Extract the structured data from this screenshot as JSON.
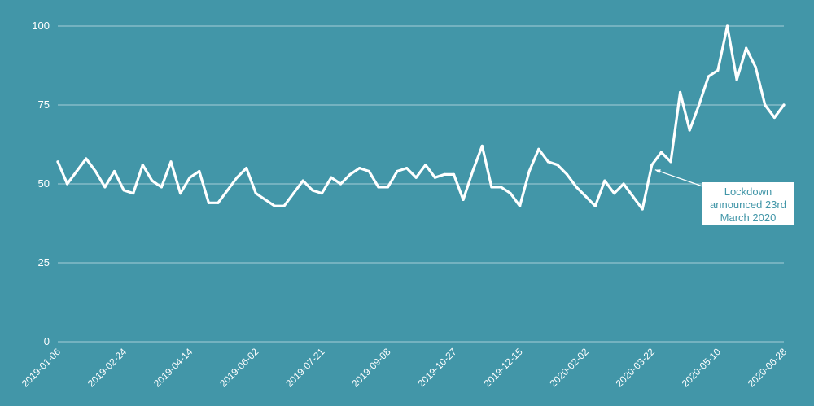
{
  "colors": {
    "background": "#4296a8",
    "line": "#ffffff",
    "grid": "#c6e1e7",
    "annotation_text": "#4296a8"
  },
  "chart_data": {
    "type": "line",
    "title": "",
    "xlabel": "",
    "ylabel": "",
    "ylim": [
      0,
      100
    ],
    "yticks": [
      "0",
      "25",
      "50",
      "75",
      "100"
    ],
    "grid": true,
    "x_tick_labels": [
      "2019-01-06",
      "2019-02-24",
      "2019-04-14",
      "2019-06-02",
      "2019-07-21",
      "2019-09-08",
      "2019-10-27",
      "2019-12-15",
      "2020-02-02",
      "2020-03-22",
      "2020-05-10",
      "2020-06-28"
    ],
    "x_start": "2019-01-06",
    "x_end": "2020-06-28",
    "series": [
      {
        "values": [
          57,
          50,
          54,
          58,
          54,
          49,
          54,
          48,
          47,
          56,
          51,
          49,
          57,
          47,
          52,
          54,
          44,
          44,
          48,
          52,
          55,
          47,
          45,
          43,
          43,
          47,
          51,
          48,
          47,
          52,
          50,
          53,
          55,
          54,
          49,
          49,
          54,
          55,
          52,
          56,
          52,
          53,
          53,
          45,
          54,
          62,
          49,
          49,
          47,
          43,
          54,
          61,
          57,
          56,
          53,
          49,
          46,
          43,
          51,
          47,
          50,
          46,
          42,
          56,
          60,
          57,
          79,
          67,
          75,
          84,
          86,
          100,
          83,
          93,
          87,
          75,
          71,
          75
        ]
      }
    ],
    "annotation": {
      "text_lines": [
        "Lockdown",
        "announced 23rd",
        "March 2020"
      ],
      "point_date": "2020-03-22",
      "point_value": 56
    }
  }
}
